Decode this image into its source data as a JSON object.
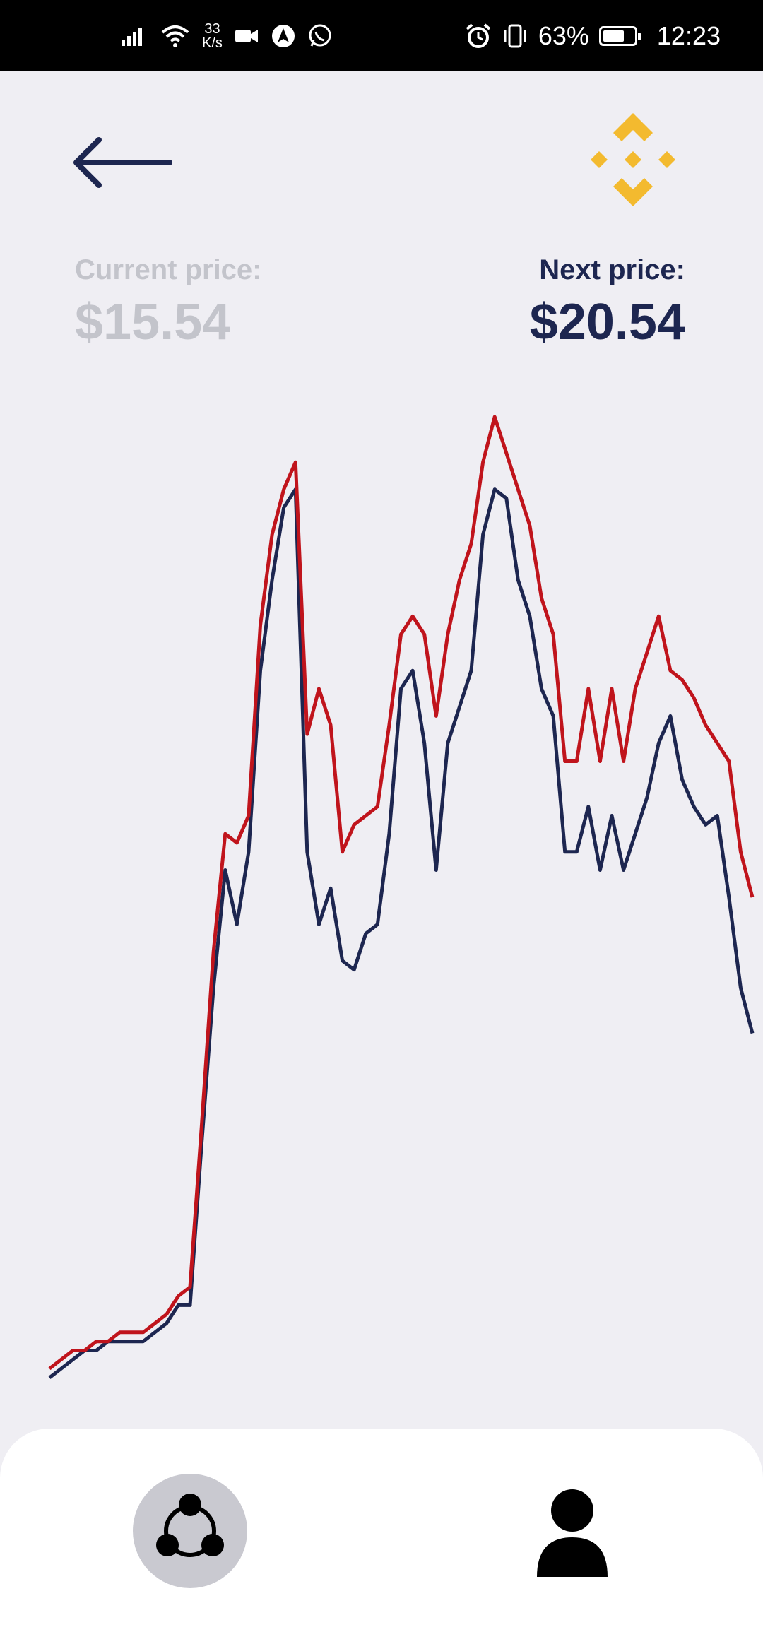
{
  "status_bar": {
    "network_speed_value": "33",
    "network_speed_unit": "K/s",
    "battery_percent": "63%",
    "time": "12:23"
  },
  "header": {
    "back_icon": "arrow-left-icon",
    "logo_icon": "binance-logo-icon",
    "accent_color": "#f3ba2f"
  },
  "prices": {
    "current_label": "Current price:",
    "current_value": "$15.54",
    "next_label": "Next price:",
    "next_value": "$20.54"
  },
  "chart_data": {
    "type": "line",
    "title": "",
    "xlabel": "",
    "ylabel": "",
    "grid": false,
    "legend": "none",
    "x": [
      0,
      1,
      2,
      3,
      4,
      5,
      6,
      7,
      8,
      9,
      10,
      11,
      12,
      13,
      14,
      15,
      16,
      17,
      18,
      19,
      20,
      21,
      22,
      23,
      24,
      25,
      26,
      27,
      28,
      29,
      30,
      31,
      32,
      33,
      34,
      35,
      36,
      37,
      38,
      39,
      40,
      41,
      42,
      43,
      44,
      45,
      46,
      47,
      48,
      49,
      50,
      51,
      52,
      53,
      54,
      55,
      56,
      57,
      58,
      59,
      60
    ],
    "series": [
      {
        "color": "#1d2650",
        "values": [
          2,
          3,
          4,
          5,
          5,
          6,
          6,
          6,
          6,
          7,
          8,
          10,
          10,
          28,
          45,
          58,
          52,
          60,
          80,
          90,
          98,
          100,
          60,
          52,
          56,
          48,
          47,
          51,
          52,
          62,
          78,
          80,
          72,
          58,
          72,
          76,
          80,
          95,
          100,
          99,
          90,
          86,
          78,
          75,
          60,
          60,
          65,
          58,
          64,
          58,
          62,
          66,
          72,
          75,
          68,
          65,
          63,
          64,
          55,
          45,
          40
        ],
        "line": "dark navy"
      },
      {
        "color": "#c0141c",
        "values": [
          3,
          4,
          5,
          5,
          6,
          6,
          7,
          7,
          7,
          8,
          9,
          11,
          12,
          30,
          49,
          62,
          61,
          64,
          85,
          95,
          100,
          103,
          73,
          78,
          74,
          60,
          63,
          64,
          65,
          74,
          84,
          86,
          84,
          75,
          84,
          90,
          94,
          103,
          108,
          104,
          100,
          96,
          88,
          84,
          70,
          70,
          78,
          70,
          78,
          70,
          78,
          82,
          86,
          80,
          79,
          77,
          74,
          72,
          70,
          60,
          55
        ],
        "line": "red"
      }
    ]
  },
  "bottom_nav": {
    "items": [
      {
        "icon": "network-share-icon",
        "active": true
      },
      {
        "icon": "user-profile-icon",
        "active": false
      }
    ]
  }
}
